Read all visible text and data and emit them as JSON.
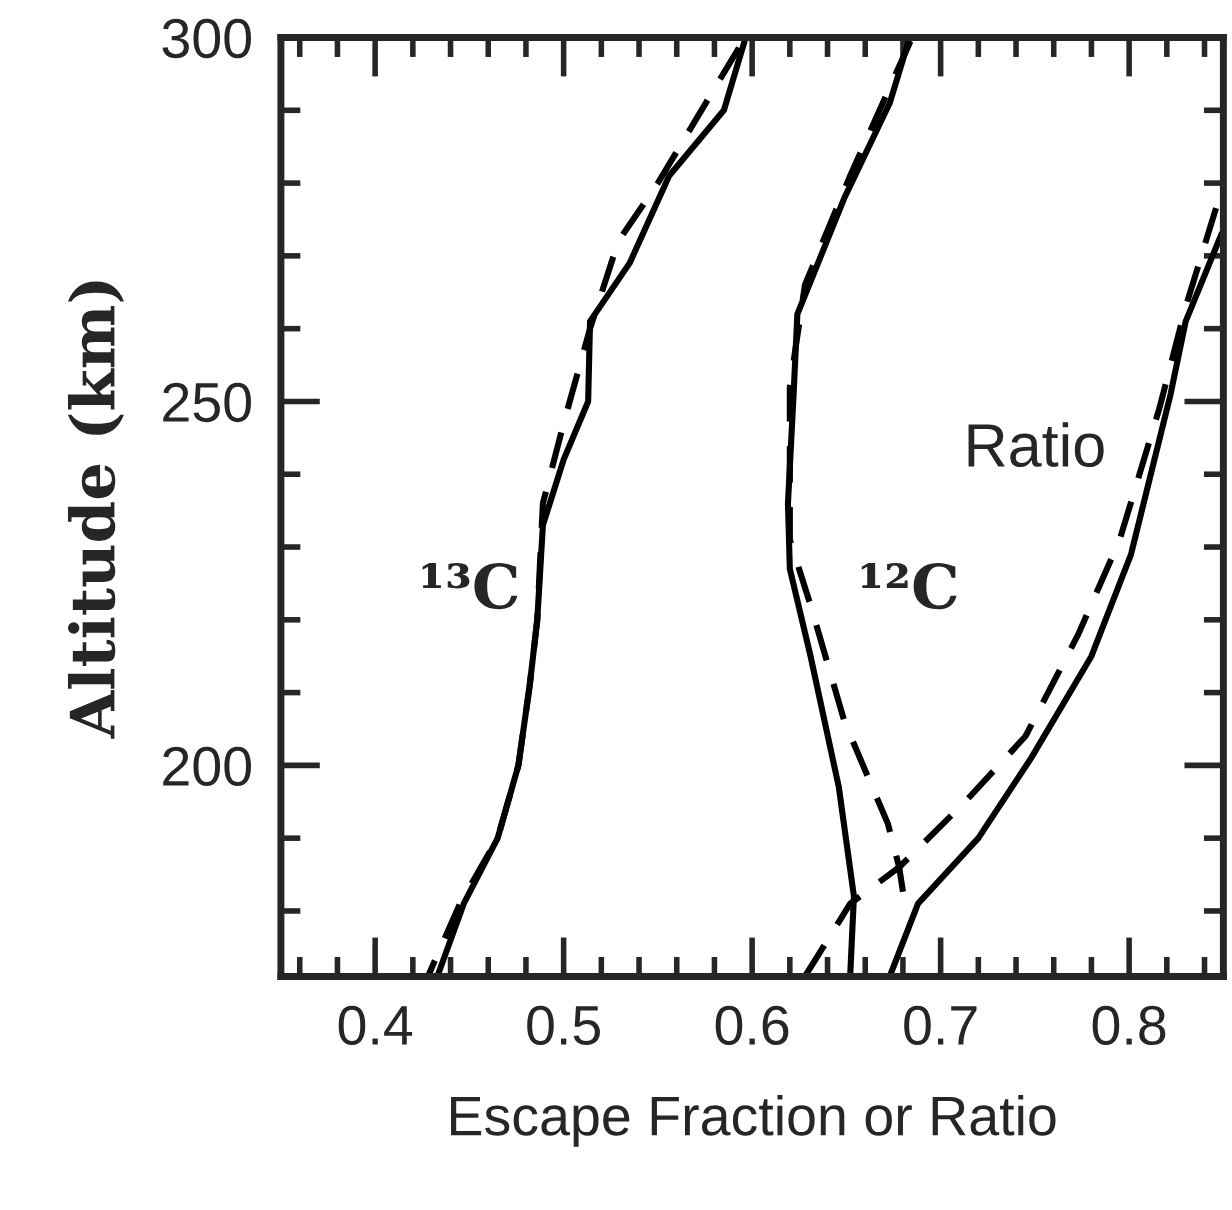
{
  "chart_data": {
    "type": "line",
    "xlabel": "Escape Fraction or Ratio",
    "ylabel": "Altitude (km)",
    "xlim": [
      0.35,
      0.85
    ],
    "ylim": [
      171,
      300
    ],
    "xticks": [
      {
        "value": 0.36,
        "label": null
      },
      {
        "value": 0.38,
        "label": null
      },
      {
        "value": 0.4,
        "label": "0.4"
      },
      {
        "value": 0.42,
        "label": null
      },
      {
        "value": 0.44,
        "label": null
      },
      {
        "value": 0.46,
        "label": null
      },
      {
        "value": 0.48,
        "label": null
      },
      {
        "value": 0.5,
        "label": "0.5"
      },
      {
        "value": 0.52,
        "label": null
      },
      {
        "value": 0.54,
        "label": null
      },
      {
        "value": 0.56,
        "label": null
      },
      {
        "value": 0.58,
        "label": null
      },
      {
        "value": 0.6,
        "label": "0.6"
      },
      {
        "value": 0.62,
        "label": null
      },
      {
        "value": 0.64,
        "label": null
      },
      {
        "value": 0.66,
        "label": null
      },
      {
        "value": 0.68,
        "label": null
      },
      {
        "value": 0.7,
        "label": "0.7"
      },
      {
        "value": 0.72,
        "label": null
      },
      {
        "value": 0.74,
        "label": null
      },
      {
        "value": 0.76,
        "label": null
      },
      {
        "value": 0.78,
        "label": null
      },
      {
        "value": 0.8,
        "label": "0.8"
      },
      {
        "value": 0.82,
        "label": null
      },
      {
        "value": 0.84,
        "label": null
      }
    ],
    "yticks": [
      {
        "value": 180,
        "label": null
      },
      {
        "value": 190,
        "label": null
      },
      200,
      {
        "value": 210,
        "label": null
      },
      {
        "value": 220,
        "label": null
      },
      {
        "value": 230,
        "label": null
      },
      {
        "value": 240,
        "label": null
      },
      250,
      {
        "value": 260,
        "label": null
      },
      {
        "value": 270,
        "label": null
      },
      {
        "value": 280,
        "label": null
      },
      {
        "value": 290,
        "label": null
      },
      300
    ],
    "grid": false,
    "legend": false,
    "marker": "none",
    "annotations": [
      "¹³C",
      "¹²C",
      "Ratio"
    ],
    "series": [
      {
        "color": "#000000",
        "line_style": "solid",
        "x": [
          0.596,
          0.585,
          0.556,
          0.535,
          0.514,
          0.513,
          0.5,
          0.489,
          0.486,
          0.482,
          0.476,
          0.465,
          0.447,
          0.433
        ],
        "values": [
          299.5,
          290,
          281,
          269,
          261,
          250,
          242,
          233,
          220,
          211,
          200,
          190,
          181,
          171
        ]
      },
      {
        "color": "#000000",
        "line_style": "dashed",
        "x": [
          0.593,
          0.55,
          0.529,
          0.514,
          0.5,
          0.489,
          0.486,
          0.482,
          0.476,
          0.465,
          0.445,
          0.428
        ],
        "values": [
          298.6,
          280,
          272,
          260,
          247,
          236,
          220,
          211,
          200,
          190,
          181,
          171
        ]
      },
      {
        "color": "#000000",
        "line_style": "solid",
        "x": [
          0.683,
          0.673,
          0.649,
          0.624,
          0.622,
          0.619,
          0.62,
          0.631,
          0.646,
          0.654,
          0.652
        ],
        "values": [
          299.5,
          291,
          278,
          262,
          251,
          236,
          227,
          215,
          197,
          182,
          171
        ]
      },
      {
        "color": "#000000",
        "line_style": "dashed",
        "x": [
          0.684,
          0.652,
          0.628,
          0.62,
          0.62,
          0.631,
          0.649,
          0.672,
          0.678,
          0.681
        ],
        "values": [
          299.5,
          281,
          266,
          252,
          231,
          222,
          206,
          192,
          186,
          181
        ]
      },
      {
        "color": "#000000",
        "line_style": "solid",
        "x": [
          0.673,
          0.688,
          0.72,
          0.748,
          0.78,
          0.801,
          0.822,
          0.83,
          0.849
        ],
        "values": [
          171,
          181,
          190,
          201,
          215,
          229,
          251,
          261,
          273
        ]
      },
      {
        "color": "#000000",
        "line_style": "dashed",
        "x": [
          0.628,
          0.652,
          0.678,
          0.713,
          0.745,
          0.773,
          0.795,
          0.816,
          0.83,
          0.849
        ],
        "values": [
          171,
          181,
          186,
          195,
          204,
          218,
          231,
          249,
          263,
          279
        ]
      }
    ]
  }
}
